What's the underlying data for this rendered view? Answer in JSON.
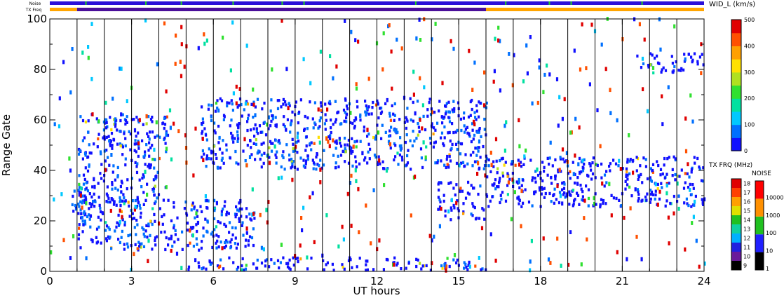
{
  "chart_data": {
    "type": "heatmap",
    "xlabel": "UT hours",
    "ylabel": "Range Gate",
    "xlim": [
      0,
      24
    ],
    "ylim": [
      0,
      100
    ],
    "x_ticks": [
      "0",
      "3",
      "6",
      "9",
      "12",
      "15",
      "18",
      "21",
      "24"
    ],
    "y_ticks": [
      "0",
      "20",
      "40",
      "60",
      "80",
      "100"
    ],
    "hour_lines": [
      1,
      2,
      3,
      4,
      5,
      6,
      7,
      8,
      9,
      10,
      11,
      12,
      13,
      14,
      15,
      16,
      17,
      18,
      19,
      20,
      21,
      22,
      23
    ],
    "status_bars": {
      "noise_label": "Noise",
      "txfreq_label": "TX Freq",
      "noise_color": "#2a0fd8",
      "noise_green_marks": [
        1.3,
        3.5,
        4.8,
        6.7,
        8.5,
        9.3,
        13.4,
        16.7,
        18.3,
        19.1,
        21.7
      ],
      "txfreq_segments": [
        {
          "start": 0,
          "end": 1,
          "color": "#ffa500"
        },
        {
          "start": 1,
          "end": 16,
          "color": "#4a0f9a"
        },
        {
          "start": 16,
          "end": 24,
          "color": "#ffa500"
        }
      ]
    },
    "colorbar_width": {
      "title": "WID_L (km/s)",
      "range": [
        0,
        500
      ],
      "tick_labels": [
        "0",
        "100",
        "200",
        "300",
        "400",
        "500"
      ],
      "colors": [
        "#1010ff",
        "#0070ff",
        "#00c8ff",
        "#00e0a0",
        "#30e030",
        "#b0e020",
        "#ffe000",
        "#ffa000",
        "#ff5000",
        "#e00000"
      ]
    },
    "colorbar_txfreq": {
      "title": "TX FRQ (MHz)",
      "tick_labels": [
        "9",
        "10",
        "11",
        "12",
        "13",
        "14",
        "15",
        "16",
        "17",
        "18"
      ],
      "colors": [
        "#000000",
        "#6a1a9a",
        "#2020e0",
        "#00b0ff",
        "#10d0a0",
        "#20c020",
        "#e0e000",
        "#ffa000",
        "#ff4000",
        "#e00000"
      ]
    },
    "colorbar_noise": {
      "title": "NOISE",
      "tick_labels": [
        "1",
        "10",
        "100",
        "1000",
        "10000"
      ],
      "colors": [
        "#000000",
        "#2020ff",
        "#20c020",
        "#ff9000",
        "#ff0000"
      ]
    },
    "regions": [
      {
        "name": "main_scatter_early",
        "x": [
          0.7,
          1.5
        ],
        "y": [
          18,
          35
        ],
        "value_kms": 60
      },
      {
        "name": "arc_band",
        "x": [
          1.0,
          4.3
        ],
        "y": [
          26,
          62
        ],
        "value_kms": 50
      },
      {
        "name": "lower_band",
        "x": [
          1.0,
          7.5
        ],
        "y": [
          8,
          28
        ],
        "value_kms": 50
      },
      {
        "name": "upper_band",
        "x": [
          5.5,
          16.0
        ],
        "y": [
          40,
          68
        ],
        "value_kms": 50
      },
      {
        "name": "mid_patch",
        "x": [
          14.2,
          16.0
        ],
        "y": [
          20,
          35
        ],
        "value_kms": 40
      },
      {
        "name": "ground_scatter",
        "x": [
          5.0,
          16.0
        ],
        "y": [
          0,
          5
        ],
        "value_kms": 40
      },
      {
        "name": "night_band",
        "x": [
          16.0,
          24.0
        ],
        "y": [
          25,
          45
        ],
        "value_kms": 40
      },
      {
        "name": "far_band",
        "x": [
          21.5,
          24.0
        ],
        "y": [
          78,
          86
        ],
        "value_kms": 40
      }
    ]
  }
}
